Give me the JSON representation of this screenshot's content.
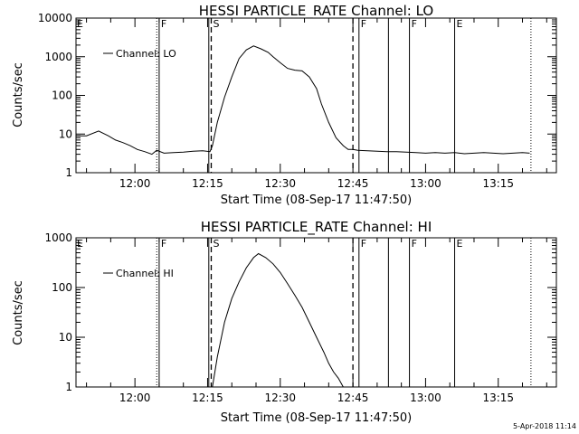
{
  "footer": {
    "timestamp": "5-Apr-2018 11:14"
  },
  "colors": {
    "background": "#ffffff",
    "foreground": "#000000"
  },
  "chart_data": [
    {
      "type": "line",
      "title": "HESSI PARTICLE_RATE Channel: LO",
      "xlabel": "Start Time (08-Sep-17 11:47:50)",
      "ylabel": "Counts/sec",
      "yscale": "log",
      "xlim": [
        "11:47:50",
        "13:27:00"
      ],
      "ylim": [
        1,
        10000
      ],
      "xticks": [
        "12:00",
        "12:15",
        "12:30",
        "12:45",
        "13:00",
        "13:15"
      ],
      "yticks": [
        "1",
        "10",
        "100",
        "1000",
        "10000"
      ],
      "legend": {
        "position": "top-left",
        "entries": [
          "Channel: LO"
        ]
      },
      "series": [
        {
          "name": "Channel: LO",
          "x": [
            "11:47:50",
            "11:50:00",
            "11:52:30",
            "11:54:30",
            "11:56:00",
            "11:57:30",
            "11:59:00",
            "12:00:30",
            "12:02:00",
            "12:03:30",
            "12:04:30",
            "12:06:00",
            "12:08:00",
            "12:10:00",
            "12:12:00",
            "12:14:00",
            "12:15:30",
            "12:16:00",
            "12:17:00",
            "12:18:30",
            "12:20:00",
            "12:21:30",
            "12:23:00",
            "12:24:30",
            "12:26:00",
            "12:27:30",
            "12:28:30",
            "12:30:00",
            "12:31:30",
            "12:33:00",
            "12:34:30",
            "12:36:00",
            "12:37:30",
            "12:38:30",
            "12:40:00",
            "12:41:30",
            "12:43:00",
            "12:44:00",
            "12:45:00",
            "12:46:00",
            "12:48:00",
            "12:50:00",
            "12:52:00",
            "12:54:00",
            "12:56:00",
            "12:58:00",
            "13:00:00",
            "13:02:00",
            "13:04:00",
            "13:06:00",
            "13:08:00",
            "13:10:00",
            "13:12:00",
            "13:14:00",
            "13:16:00",
            "13:18:00",
            "13:20:00",
            "13:21:30"
          ],
          "values": [
            9,
            9,
            12,
            9,
            7,
            6,
            5,
            4,
            3.5,
            3,
            3.8,
            3.2,
            3.3,
            3.4,
            3.6,
            3.7,
            3.5,
            5,
            20,
            90,
            300,
            900,
            1500,
            1900,
            1600,
            1300,
            1000,
            700,
            500,
            450,
            430,
            300,
            150,
            60,
            20,
            8,
            5,
            4,
            4,
            3.8,
            3.7,
            3.6,
            3.5,
            3.5,
            3.4,
            3.3,
            3.2,
            3.3,
            3.2,
            3.3,
            3.1,
            3.2,
            3.3,
            3.2,
            3.1,
            3.2,
            3.3,
            3.2
          ]
        }
      ],
      "markers": [
        {
          "time": "12:04:30",
          "label": "",
          "style": "dotted"
        },
        {
          "time": "12:05:00",
          "label": "F",
          "style": "solid"
        },
        {
          "time": "12:15:15",
          "label": "",
          "style": "solid"
        },
        {
          "time": "12:15:45",
          "label": "S",
          "style": "dashed"
        },
        {
          "time": "12:45:00",
          "label": "",
          "style": "dashed"
        },
        {
          "time": "12:46:15",
          "label": "F",
          "style": "solid"
        },
        {
          "time": "12:52:20",
          "label": "",
          "style": "solid"
        },
        {
          "time": "12:56:40",
          "label": "F",
          "style": "solid"
        },
        {
          "time": "13:06:00",
          "label": "E",
          "style": "solid"
        },
        {
          "time": "13:21:45",
          "label": "",
          "style": "dotted"
        }
      ],
      "edge_label": "E"
    },
    {
      "type": "line",
      "title": "HESSI PARTICLE_RATE Channel: HI",
      "xlabel": "Start Time (08-Sep-17 11:47:50)",
      "ylabel": "Counts/sec",
      "yscale": "log",
      "xlim": [
        "11:47:50",
        "13:27:00"
      ],
      "ylim": [
        1,
        1000
      ],
      "xticks": [
        "12:00",
        "12:15",
        "12:30",
        "12:45",
        "13:00",
        "13:15"
      ],
      "yticks": [
        "1",
        "10",
        "100",
        "1000"
      ],
      "legend": {
        "position": "top-left",
        "entries": [
          "Channel: HI"
        ]
      },
      "series": [
        {
          "name": "Channel: HI",
          "x": [
            "12:16:00",
            "12:17:00",
            "12:18:30",
            "12:20:00",
            "12:21:30",
            "12:23:00",
            "12:24:30",
            "12:25:30",
            "12:27:00",
            "12:28:30",
            "12:30:00",
            "12:31:30",
            "12:33:00",
            "12:34:30",
            "12:36:00",
            "12:37:30",
            "12:39:00",
            "12:40:00",
            "12:41:00",
            "12:42:00",
            "12:43:00"
          ],
          "values": [
            1,
            4,
            20,
            60,
            130,
            250,
            400,
            480,
            400,
            300,
            200,
            120,
            70,
            40,
            20,
            10,
            5,
            3,
            2,
            1.5,
            1
          ]
        }
      ],
      "markers": [
        {
          "time": "12:04:30",
          "label": "",
          "style": "dotted"
        },
        {
          "time": "12:05:00",
          "label": "F",
          "style": "solid"
        },
        {
          "time": "12:15:15",
          "label": "",
          "style": "solid"
        },
        {
          "time": "12:15:45",
          "label": "S",
          "style": "dashed"
        },
        {
          "time": "12:45:00",
          "label": "",
          "style": "dashed"
        },
        {
          "time": "12:46:15",
          "label": "F",
          "style": "solid"
        },
        {
          "time": "12:52:20",
          "label": "",
          "style": "solid"
        },
        {
          "time": "12:56:40",
          "label": "F",
          "style": "solid"
        },
        {
          "time": "13:06:00",
          "label": "E",
          "style": "solid"
        },
        {
          "time": "13:21:45",
          "label": "",
          "style": "dotted"
        }
      ],
      "edge_label": "E"
    }
  ]
}
